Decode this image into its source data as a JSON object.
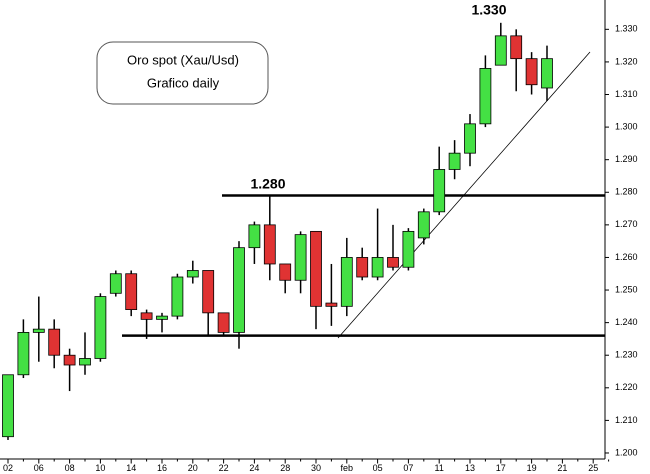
{
  "chart_data": {
    "type": "candlestick",
    "title": "Oro spot (Xau/Usd)",
    "subtitle": "Grafico daily",
    "annotations": [
      "1.280",
      "1.330"
    ],
    "levels": [
      1.279,
      1.236
    ],
    "categories": [
      "02",
      null,
      "06",
      null,
      "08",
      null,
      "10",
      null,
      "14",
      null,
      "16",
      null,
      "20",
      null,
      "22",
      null,
      "24",
      null,
      "28",
      null,
      "30",
      null,
      "feb",
      null,
      "05",
      null,
      "07",
      null,
      "11",
      null,
      "13",
      null,
      "17",
      null,
      "19",
      null,
      "21",
      null,
      "25",
      null
    ],
    "open": [
      1.205,
      1.224,
      1.237,
      1.238,
      1.23,
      1.227,
      1.229,
      1.249,
      1.255,
      1.243,
      1.241,
      1.242,
      1.254,
      1.256,
      1.243,
      1.237,
      1.263,
      1.27,
      1.258,
      1.253,
      1.268,
      1.246,
      1.245,
      1.26,
      1.254,
      1.26,
      1.257,
      1.266,
      1.274,
      1.287,
      1.292,
      1.301,
      1.319,
      1.328,
      1.321,
      1.312,
      null,
      null,
      null,
      null
    ],
    "high": [
      1.224,
      1.241,
      1.248,
      1.241,
      1.232,
      1.237,
      1.249,
      1.256,
      1.256,
      1.244,
      1.243,
      1.255,
      1.259,
      1.256,
      1.243,
      1.265,
      1.271,
      1.279,
      1.258,
      1.268,
      1.268,
      1.258,
      1.266,
      1.263,
      1.275,
      1.27,
      1.269,
      1.275,
      1.294,
      1.296,
      1.304,
      1.322,
      1.332,
      1.33,
      1.323,
      1.325,
      null,
      null,
      null,
      null
    ],
    "low": [
      1.204,
      1.223,
      1.228,
      1.226,
      1.219,
      1.224,
      1.228,
      1.248,
      1.242,
      1.235,
      1.237,
      1.241,
      1.252,
      1.236,
      1.236,
      1.232,
      1.258,
      1.253,
      1.249,
      1.249,
      1.238,
      1.239,
      1.242,
      1.253,
      1.253,
      1.256,
      1.256,
      1.264,
      1.273,
      1.284,
      1.288,
      1.3,
      1.319,
      1.311,
      1.31,
      1.308,
      null,
      null,
      null,
      null
    ],
    "close": [
      1.224,
      1.237,
      1.238,
      1.23,
      1.227,
      1.229,
      1.248,
      1.255,
      1.244,
      1.241,
      1.242,
      1.254,
      1.256,
      1.243,
      1.237,
      1.263,
      1.27,
      1.258,
      1.253,
      1.267,
      1.245,
      1.245,
      1.26,
      1.254,
      1.26,
      1.257,
      1.268,
      1.274,
      1.287,
      1.292,
      1.301,
      1.318,
      1.328,
      1.321,
      1.313,
      1.321,
      null,
      null,
      null,
      null
    ],
    "up_color": "#44e044",
    "down_color": "#e03333",
    "ylim": [
      1.198,
      1.339
    ],
    "yticks": [
      {
        "value": 1.2,
        "label": "1.200"
      },
      {
        "value": 1.21,
        "label": "1.210"
      },
      {
        "value": 1.22,
        "label": "1.220"
      },
      {
        "value": 1.23,
        "label": "1.230"
      },
      {
        "value": 1.24,
        "label": "1.240"
      },
      {
        "value": 1.25,
        "label": "1.250"
      },
      {
        "value": 1.26,
        "label": "1.260"
      },
      {
        "value": 1.27,
        "label": "1.270"
      },
      {
        "value": 1.28,
        "label": "1.280"
      },
      {
        "value": 1.29,
        "label": "1.290"
      },
      {
        "value": 1.3,
        "label": "1.300"
      },
      {
        "value": 1.31,
        "label": "1.310"
      },
      {
        "value": 1.32,
        "label": "1.320"
      },
      {
        "value": 1.33,
        "label": "1.330"
      }
    ]
  }
}
